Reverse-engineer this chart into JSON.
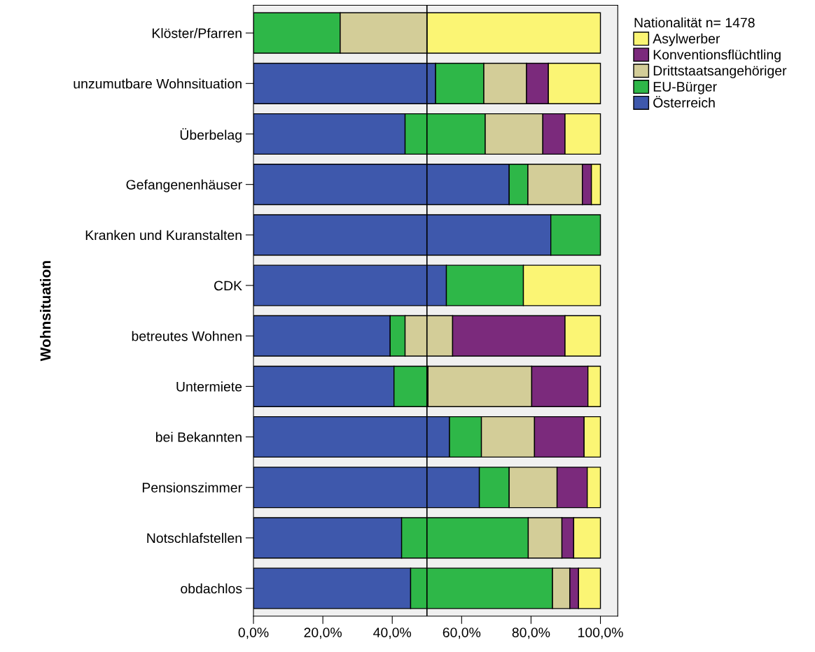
{
  "chart_data": {
    "type": "bar",
    "orientation": "horizontal",
    "stacked": true,
    "ylabel": "Wohnsituation",
    "legend_title": "Nationalität n= 1478",
    "legend": "top right",
    "grid": false,
    "categories": [
      "Klöster/Pfarren",
      "unzumutbare Wohnsituation",
      "Überbelag",
      "Gefangenenhäuser",
      "Kranken und Kuranstalten",
      "CDK",
      "betreutes Wohnen",
      "Untermiete",
      "bei Bekannten",
      "Pensionszimmer",
      "Notschlafstellen",
      "obdachlos"
    ],
    "series": [
      {
        "name": "Österreich",
        "color": "#3e58ac",
        "values": [
          null,
          52.5,
          43.7,
          73.7,
          85.7,
          55.6,
          39.4,
          40.5,
          56.5,
          65.1,
          42.7,
          45.3
        ]
      },
      {
        "name": "EU-Bürger",
        "color": "#2eb748",
        "values": [
          25.0,
          13.9,
          23.1,
          5.4,
          14.3,
          22.2,
          4.3,
          9.8,
          9.2,
          8.6,
          36.5,
          40.9
        ]
      },
      {
        "name": "Drittstaatsangehöriger",
        "color": "#d3cd98",
        "values": [
          25.0,
          12.3,
          16.6,
          15.7,
          null,
          null,
          13.7,
          29.9,
          15.3,
          13.8,
          9.7,
          5.0
        ]
      },
      {
        "name": "Konventionsflüchtling",
        "color": "#7b2a7c",
        "values": [
          null,
          6.3,
          6.4,
          2.6,
          null,
          null,
          32.4,
          16.2,
          14.3,
          8.7,
          3.4,
          2.5
        ]
      },
      {
        "name": "Asylwerber",
        "color": "#fbf574",
        "values": [
          50.0,
          15.0,
          10.2,
          2.6,
          null,
          22.2,
          10.2,
          3.6,
          4.7,
          3.8,
          7.7,
          6.3
        ]
      }
    ],
    "xlim": [
      0,
      105
    ],
    "xticks": [
      {
        "value": 0,
        "label": "0,0%"
      },
      {
        "value": 20,
        "label": "20,0%"
      },
      {
        "value": 40,
        "label": "40,0%"
      },
      {
        "value": 60,
        "label": "60,0%"
      },
      {
        "value": 80,
        "label": "80,0%"
      },
      {
        "value": 100,
        "label": "100,0%"
      }
    ],
    "ref_lines": [
      {
        "axis": "x",
        "value": 50,
        "color": "#000000"
      }
    ]
  }
}
